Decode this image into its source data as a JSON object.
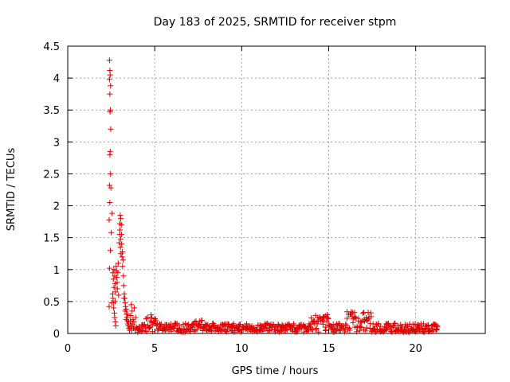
{
  "chart_data": {
    "type": "scatter",
    "title": "Day 183 of 2025, SRMTID for receiver stpm",
    "xlabel": "GPS time / hours",
    "ylabel": "SRMTID / TECUs",
    "xlim": [
      0,
      24
    ],
    "ylim": [
      0,
      4.5
    ],
    "xticks": [
      0,
      5,
      10,
      15,
      20
    ],
    "yticks": [
      0,
      0.5,
      1,
      1.5,
      2,
      2.5,
      3,
      3.5,
      4,
      4.5
    ],
    "grid": true,
    "marker": "+",
    "color": "#e00000",
    "series": [
      {
        "name": "SRMTID",
        "points": [
          [
            2.4,
            4.28
          ],
          [
            2.42,
            4.12
          ],
          [
            2.44,
            4.05
          ],
          [
            2.4,
            3.98
          ],
          [
            2.46,
            3.88
          ],
          [
            2.42,
            3.75
          ],
          [
            2.45,
            3.5
          ],
          [
            2.43,
            3.47
          ],
          [
            2.47,
            3.2
          ],
          [
            2.44,
            2.85
          ],
          [
            2.42,
            2.8
          ],
          [
            2.46,
            2.5
          ],
          [
            2.4,
            2.32
          ],
          [
            2.48,
            2.28
          ],
          [
            2.42,
            2.05
          ],
          [
            2.55,
            1.88
          ],
          [
            2.38,
            1.78
          ],
          [
            2.5,
            1.58
          ],
          [
            2.45,
            1.3
          ],
          [
            2.4,
            1.02
          ],
          [
            2.38,
            0.42
          ],
          [
            2.52,
            0.48
          ],
          [
            2.6,
            0.95
          ],
          [
            2.62,
            0.85
          ],
          [
            2.65,
            1.0
          ],
          [
            2.7,
            0.9
          ],
          [
            2.72,
            0.78
          ],
          [
            2.75,
            0.65
          ],
          [
            2.78,
            1.05
          ],
          [
            2.8,
            0.98
          ],
          [
            2.82,
            0.88
          ],
          [
            2.85,
            0.7
          ],
          [
            2.88,
            0.95
          ],
          [
            2.9,
            1.1
          ],
          [
            2.6,
            0.55
          ],
          [
            2.64,
            0.4
          ],
          [
            2.68,
            0.32
          ],
          [
            2.7,
            0.25
          ],
          [
            2.74,
            0.18
          ],
          [
            2.76,
            0.12
          ],
          [
            2.58,
            0.62
          ],
          [
            2.66,
            0.72
          ],
          [
            2.84,
            0.8
          ],
          [
            2.92,
            0.6
          ],
          [
            2.62,
            0.48
          ],
          [
            2.72,
            0.5
          ],
          [
            2.95,
            1.42
          ],
          [
            2.98,
            1.55
          ],
          [
            3.0,
            1.72
          ],
          [
            3.02,
            1.85
          ],
          [
            3.05,
            1.8
          ],
          [
            3.08,
            1.7
          ],
          [
            3.04,
            1.48
          ],
          [
            3.1,
            1.4
          ],
          [
            3.06,
            1.25
          ],
          [
            3.12,
            1.2
          ],
          [
            3.15,
            1.05
          ],
          [
            3.18,
            1.15
          ],
          [
            3.0,
            1.62
          ],
          [
            3.03,
            1.35
          ],
          [
            3.09,
            1.55
          ],
          [
            3.14,
            1.28
          ],
          [
            3.2,
            0.9
          ],
          [
            3.22,
            0.75
          ],
          [
            3.25,
            0.62
          ],
          [
            3.28,
            0.55
          ],
          [
            3.3,
            0.48
          ],
          [
            3.32,
            0.42
          ],
          [
            3.35,
            0.38
          ],
          [
            3.38,
            0.3
          ],
          [
            3.4,
            0.25
          ],
          [
            3.42,
            0.2
          ],
          [
            3.45,
            0.15
          ],
          [
            3.48,
            0.12
          ],
          [
            3.24,
            0.55
          ],
          [
            3.3,
            0.35
          ],
          [
            3.36,
            0.22
          ],
          [
            3.44,
            0.3
          ],
          [
            3.5,
            0.18
          ],
          [
            3.52,
            0.08
          ],
          [
            3.55,
            0.05
          ],
          [
            3.58,
            0.1
          ],
          [
            3.6,
            0.2
          ],
          [
            3.62,
            0.28
          ],
          [
            3.65,
            0.12
          ],
          [
            3.68,
            0.05
          ],
          [
            3.72,
            0.15
          ],
          [
            3.75,
            0.22
          ],
          [
            3.78,
            0.08
          ],
          [
            3.8,
            0.18
          ],
          [
            3.85,
            0.1
          ],
          [
            3.88,
            0.05
          ],
          [
            3.7,
            0.35
          ],
          [
            3.82,
            0.4
          ],
          [
            3.9,
            0.25
          ],
          [
            3.95,
            0.1
          ],
          [
            4.0,
            0.08
          ],
          [
            3.65,
            0.45
          ]
        ]
      }
    ]
  }
}
